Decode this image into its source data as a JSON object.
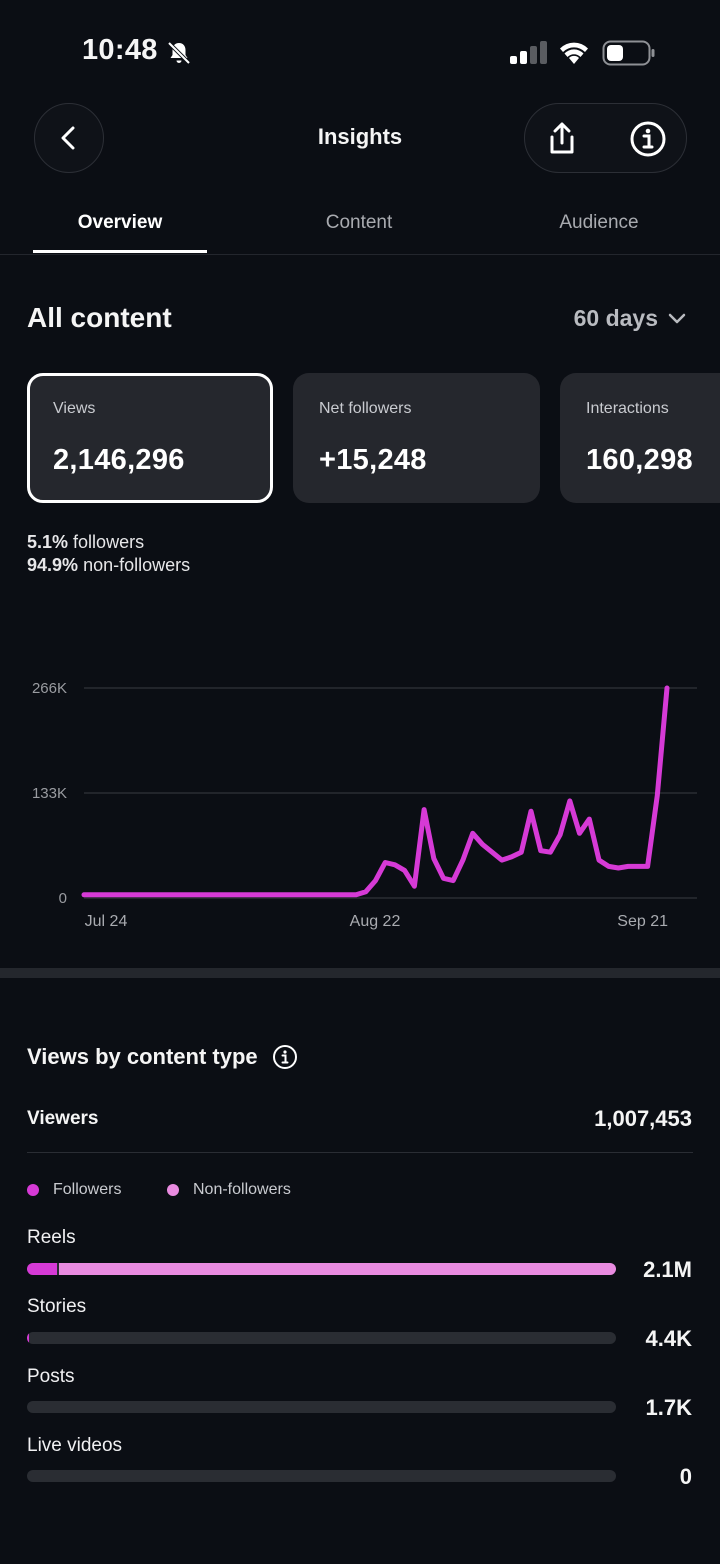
{
  "status_bar": {
    "time": "10:48"
  },
  "header": {
    "title": "Insights"
  },
  "tabs": [
    {
      "label": "Overview",
      "active": true
    },
    {
      "label": "Content",
      "active": false
    },
    {
      "label": "Audience",
      "active": false
    }
  ],
  "section": {
    "title": "All content",
    "range": "60 days"
  },
  "metrics": [
    {
      "label": "Views",
      "value": "2,146,296",
      "selected": true
    },
    {
      "label": "Net followers",
      "value": "+15,248",
      "selected": false
    },
    {
      "label": "Interactions",
      "value": "160,298",
      "selected": false
    }
  ],
  "split": {
    "followers_pct": "5.1%",
    "followers_label": "followers",
    "nonfollowers_pct": "94.9%",
    "nonfollowers_label": "non-followers"
  },
  "chart_data": {
    "type": "line",
    "series": [
      {
        "values": [
          4000,
          4000,
          4000,
          4000,
          4000,
          4000,
          4000,
          4000,
          4000,
          4000,
          4000,
          4000,
          4000,
          4000,
          4000,
          4000,
          4000,
          4000,
          4000,
          4000,
          4000,
          4000,
          4000,
          4000,
          4000,
          4000,
          4000,
          4000,
          4000,
          8000,
          22000,
          45000,
          42000,
          35000,
          15000,
          112000,
          50000,
          25000,
          22000,
          48000,
          82000,
          68000,
          58000,
          48000,
          52000,
          58000,
          110000,
          60000,
          58000,
          80000,
          123000,
          82000,
          100000,
          48000,
          40000,
          38000,
          40000,
          40000,
          40000,
          130000,
          266000
        ],
        "color": "#d63ad6"
      }
    ],
    "x_ticks": [
      "Jul 24",
      "Aug 22",
      "Sep 21"
    ],
    "y_ticks": [
      "266K",
      "133K",
      "0"
    ],
    "ylim": [
      0,
      266000
    ]
  },
  "content_type": {
    "title": "Views by content type",
    "viewers_label": "Viewers",
    "viewers_value": "1,007,453",
    "legend": [
      {
        "label": "Followers",
        "color": "#d63ad6"
      },
      {
        "label": "Non-followers",
        "color": "#e98be0"
      }
    ],
    "rows": [
      {
        "label": "Reels",
        "value": "2.1M",
        "followers_fraction": 0.051,
        "nonfollowers_fraction": 0.949,
        "fill": 1.0
      },
      {
        "label": "Stories",
        "value": "4.4K",
        "followers_fraction": 0.003,
        "nonfollowers_fraction": 0.0,
        "fill": 0.003
      },
      {
        "label": "Posts",
        "value": "1.7K",
        "followers_fraction": 0.0,
        "nonfollowers_fraction": 0.0,
        "fill": 0.0
      },
      {
        "label": "Live videos",
        "value": "0",
        "followers_fraction": 0.0,
        "nonfollowers_fraction": 0.0,
        "fill": 0.0
      }
    ]
  }
}
